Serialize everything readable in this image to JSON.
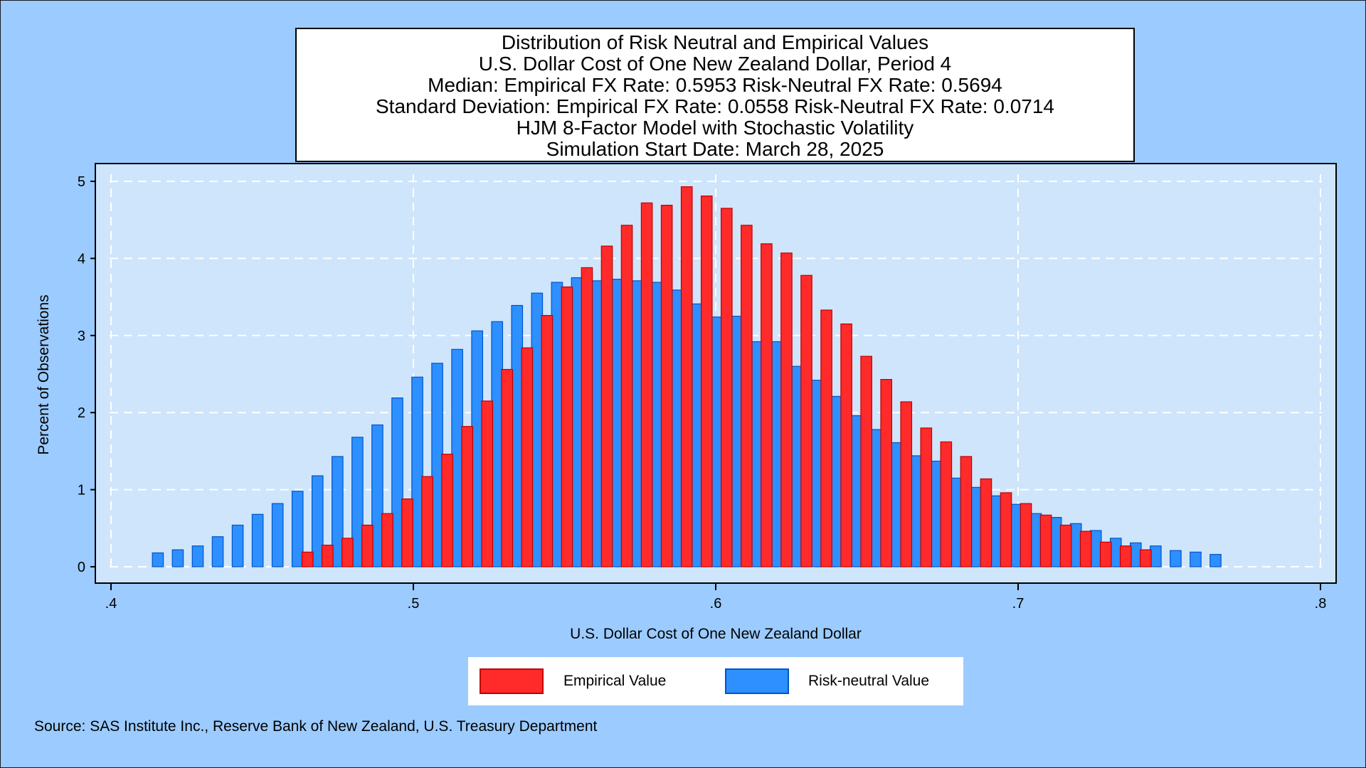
{
  "title_lines": [
    "Distribution of Risk Neutral and Empirical Values",
    "U.S. Dollar Cost of One New Zealand Dollar, Period 4",
    "Median: Empirical FX Rate:  0.5953   Risk-Neutral FX Rate:  0.5694",
    "Standard Deviation: Empirical FX Rate:  0.0558   Risk-Neutral FX Rate:  0.0714",
    "HJM 8-Factor Model with Stochastic Volatility",
    "Simulation Start Date: March 28, 2025"
  ],
  "source": "Source: SAS Institute Inc., Reserve Bank of New Zealand, U.S. Treasury Department",
  "colors": {
    "background": "#9ccbff",
    "plot_area": "#cfe5fb",
    "empirical": "#ff2a2a",
    "empirical_edge": "#c00000",
    "risk_neutral": "#2e8fff",
    "risk_neutral_edge": "#0055c8",
    "grid": "#ffffff"
  },
  "chart_data": {
    "type": "bar",
    "xlabel": "U.S. Dollar Cost of One New Zealand Dollar",
    "ylabel": "Percent of Observations",
    "xlim": [
      0.4,
      0.8
    ],
    "ylim": [
      0,
      5
    ],
    "x_ticks": [
      0.4,
      0.5,
      0.6,
      0.7,
      0.8
    ],
    "x_tick_labels": [
      ".4",
      ".5",
      ".6",
      ".7",
      ".8"
    ],
    "y_ticks": [
      0,
      1,
      2,
      3,
      4,
      5
    ],
    "y_tick_labels": [
      "0",
      "1",
      "2",
      "3",
      "4",
      "5"
    ],
    "grid": true,
    "legend_position": "bottom",
    "bin_width": 0.0066,
    "series": [
      {
        "name": "Risk-neutral Value",
        "x": [
          0.4155,
          0.4221,
          0.4287,
          0.4353,
          0.4419,
          0.4485,
          0.4551,
          0.4617,
          0.4683,
          0.4749,
          0.4815,
          0.4881,
          0.4947,
          0.5013,
          0.5079,
          0.5145,
          0.5211,
          0.5277,
          0.5343,
          0.5409,
          0.5475,
          0.5541,
          0.5607,
          0.5673,
          0.5739,
          0.5805,
          0.5871,
          0.5937,
          0.6003,
          0.6069,
          0.6135,
          0.6201,
          0.6267,
          0.6333,
          0.6399,
          0.6465,
          0.6531,
          0.6597,
          0.6663,
          0.6729,
          0.6795,
          0.6861,
          0.6927,
          0.6993,
          0.7059,
          0.7125,
          0.7191,
          0.7257,
          0.7323,
          0.7389,
          0.7455,
          0.7521,
          0.7587,
          0.7653
        ],
        "values": [
          0.18,
          0.22,
          0.27,
          0.39,
          0.54,
          0.68,
          0.82,
          0.98,
          1.18,
          1.43,
          1.68,
          1.84,
          2.19,
          2.46,
          2.64,
          2.82,
          3.06,
          3.18,
          3.39,
          3.55,
          3.69,
          3.75,
          3.71,
          3.73,
          3.71,
          3.69,
          3.59,
          3.41,
          3.24,
          3.25,
          2.92,
          2.92,
          2.6,
          2.42,
          2.21,
          1.96,
          1.78,
          1.61,
          1.44,
          1.37,
          1.15,
          1.03,
          0.92,
          0.81,
          0.69,
          0.64,
          0.56,
          0.47,
          0.37,
          0.31,
          0.27,
          0.21,
          0.19,
          0.16
        ]
      },
      {
        "name": "Empirical Value",
        "x": [
          0.465,
          0.4716,
          0.4782,
          0.4848,
          0.4914,
          0.498,
          0.5046,
          0.5112,
          0.5178,
          0.5244,
          0.531,
          0.5376,
          0.5442,
          0.5508,
          0.5574,
          0.564,
          0.5706,
          0.5772,
          0.5838,
          0.5904,
          0.597,
          0.6036,
          0.6102,
          0.6168,
          0.6234,
          0.63,
          0.6366,
          0.6432,
          0.6498,
          0.6564,
          0.663,
          0.6696,
          0.6762,
          0.6828,
          0.6894,
          0.696,
          0.7026,
          0.7092,
          0.7158,
          0.7224,
          0.729,
          0.7356,
          0.7422
        ],
        "values": [
          0.19,
          0.28,
          0.37,
          0.54,
          0.69,
          0.88,
          1.17,
          1.46,
          1.82,
          2.15,
          2.56,
          2.84,
          3.26,
          3.63,
          3.88,
          4.16,
          4.43,
          4.72,
          4.69,
          4.93,
          4.81,
          4.65,
          4.43,
          4.19,
          4.07,
          3.78,
          3.33,
          3.15,
          2.73,
          2.43,
          2.14,
          1.8,
          1.62,
          1.43,
          1.14,
          0.96,
          0.82,
          0.67,
          0.54,
          0.46,
          0.32,
          0.27,
          0.22
        ]
      }
    ]
  }
}
